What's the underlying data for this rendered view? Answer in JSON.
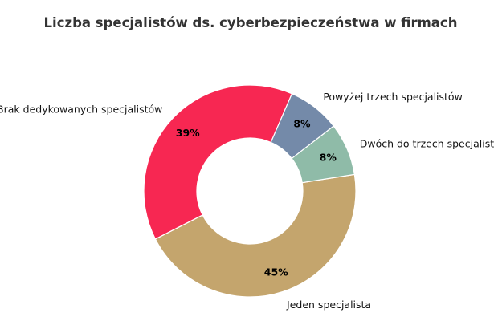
{
  "chart_data": {
    "type": "pie",
    "variant": "donut",
    "title": "Liczba specjalistów ds. cyberbezpieczeństwa w firmach",
    "categories": [
      "Jeden specjalista",
      "Brak dedykowanych specjalistów",
      "Powyżej trzech specjalistów",
      "Dwóch do trzech specjalistów"
    ],
    "values": [
      45,
      39,
      8,
      8
    ],
    "value_labels": [
      "45%",
      "39%",
      "8%",
      "8%"
    ],
    "colors": [
      "#c4a56d",
      "#f72752",
      "#748aa9",
      "#8fbba8"
    ],
    "legend": "none"
  }
}
